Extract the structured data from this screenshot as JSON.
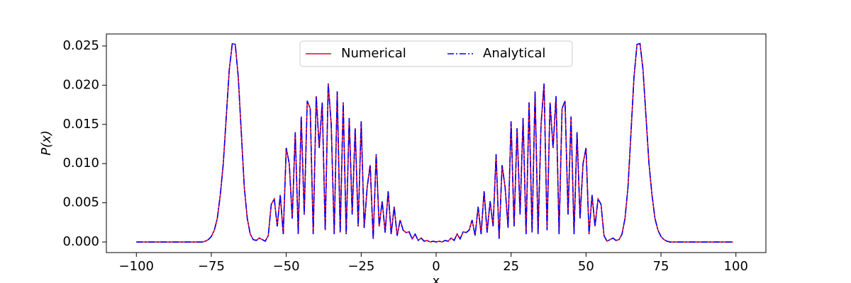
{
  "chart_data": {
    "type": "line",
    "xlabel": "x",
    "ylabel": "P(x)",
    "x": [
      -100,
      -99,
      -98,
      -97,
      -96,
      -95,
      -94,
      -93,
      -92,
      -91,
      -90,
      -89,
      -88,
      -87,
      -86,
      -85,
      -84,
      -83,
      -82,
      -81,
      -80,
      -79,
      -78,
      -77,
      -76,
      -75,
      -74,
      -73,
      -72,
      -71,
      -70,
      -69,
      -68,
      -67,
      -66,
      -65,
      -64,
      -63,
      -62,
      -61,
      -60,
      -59,
      -58,
      -57,
      -56,
      -55,
      -54,
      -53,
      -52,
      -51,
      -50,
      -49,
      -48,
      -47,
      -46,
      -45,
      -44,
      -43,
      -42,
      -41,
      -40,
      -39,
      -38,
      -37,
      -36,
      -35,
      -34,
      -33,
      -32,
      -31,
      -30,
      -29,
      -28,
      -27,
      -26,
      -25,
      -24,
      -23,
      -22,
      -21,
      -20,
      -19,
      -18,
      -17,
      -16,
      -15,
      -14,
      -13,
      -12,
      -11,
      -10,
      -9,
      -8,
      -7,
      -6,
      -5,
      -4,
      -3,
      -2,
      -1,
      0,
      1,
      2,
      3,
      4,
      5,
      6,
      7,
      8,
      9,
      10,
      11,
      12,
      13,
      14,
      15,
      16,
      17,
      18,
      19,
      20,
      21,
      22,
      23,
      24,
      25,
      26,
      27,
      28,
      29,
      30,
      31,
      32,
      33,
      34,
      35,
      36,
      37,
      38,
      39,
      40,
      41,
      42,
      43,
      44,
      45,
      46,
      47,
      48,
      49,
      50,
      51,
      52,
      53,
      54,
      55,
      56,
      57,
      58,
      59,
      60,
      61,
      62,
      63,
      64,
      65,
      66,
      67,
      68,
      69,
      70,
      71,
      72,
      73,
      74,
      75,
      76,
      77,
      78,
      79,
      80,
      81,
      82,
      83,
      84,
      85,
      86,
      87,
      88,
      89,
      90,
      91,
      92,
      93,
      94,
      95,
      96,
      97,
      98,
      99
    ],
    "series": [
      {
        "name": "Numerical",
        "color": "#ff0000",
        "dash": "solid",
        "values": [
          0,
          0,
          0,
          0,
          0,
          0,
          0,
          0,
          0,
          0,
          0,
          0,
          0,
          0,
          0,
          0,
          0,
          0,
          0,
          0,
          0,
          0,
          0,
          0.0001,
          0.0003,
          0.0007,
          0.0015,
          0.003,
          0.006,
          0.01,
          0.016,
          0.022,
          0.0253,
          0.0252,
          0.021,
          0.014,
          0.007,
          0.003,
          0.001,
          0.0003,
          0.0002,
          0.0005,
          0.0003,
          0.0001,
          0.0008,
          0.0048,
          0.0055,
          0.002,
          0.006,
          0.001,
          0.012,
          0.01,
          0.003,
          0.014,
          0.001,
          0.016,
          0.0035,
          0.018,
          0.017,
          0.001,
          0.0186,
          0.012,
          0.0178,
          0.0015,
          0.0202,
          0.015,
          0.001,
          0.0192,
          0.0012,
          0.0178,
          0.001,
          0.0158,
          0.0035,
          0.0145,
          0.002,
          0.0154,
          0.0018,
          0.007,
          0.0098,
          0.0004,
          0.0112,
          0.002,
          0.0052,
          0.0012,
          0.0065,
          0.001,
          0.0045,
          0.0008,
          0.0028,
          0.0015,
          0.0012,
          0.0013,
          0.0004,
          0.001,
          0.0002,
          0.0005,
          0.0001,
          0.0002,
          0,
          0.0001,
          0,
          0.0001,
          0,
          0.0002,
          0.0001,
          0.0005,
          0.0002,
          0.001,
          0.0004,
          0.0013,
          0.0012,
          0.0015,
          0.0028,
          0.0008,
          0.0045,
          0.001,
          0.0065,
          0.0012,
          0.0052,
          0.002,
          0.0112,
          0.0004,
          0.0098,
          0.007,
          0.0018,
          0.0154,
          0.002,
          0.0145,
          0.0035,
          0.0158,
          0.001,
          0.0178,
          0.0012,
          0.0192,
          0.001,
          0.015,
          0.0202,
          0.0015,
          0.0178,
          0.012,
          0.0186,
          0.001,
          0.017,
          0.018,
          0.0035,
          0.016,
          0.001,
          0.014,
          0.003,
          0.01,
          0.012,
          0.001,
          0.006,
          0.002,
          0.0055,
          0.0048,
          0.0008,
          0.0001,
          0.0003,
          0.0005,
          0.0002,
          0.0003,
          0.001,
          0.003,
          0.007,
          0.014,
          0.021,
          0.0252,
          0.0253,
          0.022,
          0.016,
          0.01,
          0.006,
          0.003,
          0.0015,
          0.0007,
          0.0003,
          0.0001,
          0,
          0,
          0,
          0,
          0,
          0,
          0,
          0,
          0,
          0,
          0,
          0,
          0,
          0,
          0,
          0,
          0,
          0,
          0,
          0,
          0,
          0
        ]
      },
      {
        "name": "Analytical",
        "color": "#0000ff",
        "dash": "dashdot",
        "values": [
          0,
          0,
          0,
          0,
          0,
          0,
          0,
          0,
          0,
          0,
          0,
          0,
          0,
          0,
          0,
          0,
          0,
          0,
          0,
          0,
          0,
          0,
          0,
          0.0001,
          0.0003,
          0.0007,
          0.0015,
          0.003,
          0.006,
          0.01,
          0.016,
          0.022,
          0.0253,
          0.0252,
          0.021,
          0.014,
          0.007,
          0.003,
          0.001,
          0.0003,
          0.0002,
          0.0005,
          0.0003,
          0.0001,
          0.0008,
          0.0048,
          0.0055,
          0.002,
          0.006,
          0.001,
          0.012,
          0.01,
          0.003,
          0.014,
          0.001,
          0.016,
          0.0035,
          0.018,
          0.017,
          0.001,
          0.0186,
          0.012,
          0.0178,
          0.0015,
          0.0202,
          0.015,
          0.001,
          0.0192,
          0.0012,
          0.0178,
          0.001,
          0.0158,
          0.0035,
          0.0145,
          0.002,
          0.0154,
          0.0018,
          0.007,
          0.0098,
          0.0004,
          0.0112,
          0.002,
          0.0052,
          0.0012,
          0.0065,
          0.001,
          0.0045,
          0.0008,
          0.0028,
          0.0015,
          0.0012,
          0.0013,
          0.0004,
          0.001,
          0.0002,
          0.0005,
          0.0001,
          0.0002,
          0,
          0.0001,
          0,
          0.0001,
          0,
          0.0002,
          0.0001,
          0.0005,
          0.0002,
          0.001,
          0.0004,
          0.0013,
          0.0012,
          0.0015,
          0.0028,
          0.0008,
          0.0045,
          0.001,
          0.0065,
          0.0012,
          0.0052,
          0.002,
          0.0112,
          0.0004,
          0.0098,
          0.007,
          0.0018,
          0.0154,
          0.002,
          0.0145,
          0.0035,
          0.0158,
          0.001,
          0.0178,
          0.0012,
          0.0192,
          0.001,
          0.015,
          0.0202,
          0.0015,
          0.0178,
          0.012,
          0.0186,
          0.001,
          0.017,
          0.018,
          0.0035,
          0.016,
          0.001,
          0.014,
          0.003,
          0.01,
          0.012,
          0.001,
          0.006,
          0.002,
          0.0055,
          0.0048,
          0.0008,
          0.0001,
          0.0003,
          0.0005,
          0.0002,
          0.0003,
          0.001,
          0.003,
          0.007,
          0.014,
          0.021,
          0.0252,
          0.0253,
          0.022,
          0.016,
          0.01,
          0.006,
          0.003,
          0.0015,
          0.0007,
          0.0003,
          0.0001,
          0,
          0,
          0,
          0,
          0,
          0,
          0,
          0,
          0,
          0,
          0,
          0,
          0,
          0,
          0,
          0,
          0,
          0,
          0,
          0,
          0,
          0
        ]
      }
    ],
    "xlim": [
      -110,
      110
    ],
    "xticks": [
      {
        "value": -100,
        "label": "−100"
      },
      {
        "value": -75,
        "label": "−75"
      },
      {
        "value": -50,
        "label": "−50"
      },
      {
        "value": -25,
        "label": "−25"
      },
      0,
      25,
      50,
      75,
      100
    ],
    "ylim": [
      -0.00135,
      0.02653
    ],
    "yticks": [
      {
        "value": 0,
        "label": "0.000"
      },
      {
        "value": 0.005,
        "label": "0.005"
      },
      {
        "value": 0.01,
        "label": "0.010"
      },
      {
        "value": 0.015,
        "label": "0.015"
      },
      {
        "value": 0.02,
        "label": "0.020"
      },
      {
        "value": 0.025,
        "label": "0.025"
      }
    ],
    "legend": "upper center",
    "legend_columns": 2
  }
}
